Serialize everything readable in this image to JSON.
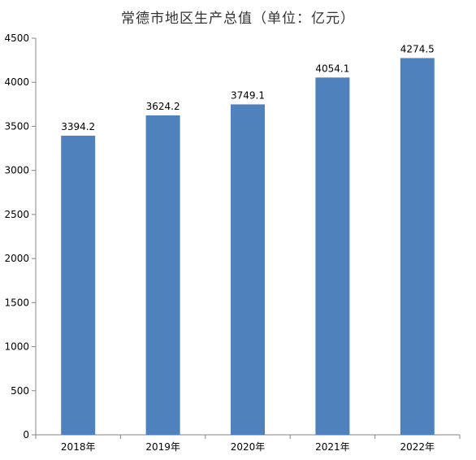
{
  "chart_data": {
    "type": "bar",
    "title": "常德市地区生产总值（单位：亿元）",
    "categories": [
      "2018年",
      "2019年",
      "2020年",
      "2021年",
      "2022年"
    ],
    "values": [
      3394.2,
      3624.2,
      3749.1,
      4054.1,
      4274.5
    ],
    "value_labels": [
      "3394.2",
      "3624.2",
      "3749.1",
      "4054.1",
      "4274.5"
    ],
    "xlabel": "",
    "ylabel": "",
    "ylim": [
      0,
      4500
    ],
    "yticks": [
      0,
      500,
      1000,
      1500,
      2000,
      2500,
      3000,
      3500,
      4000,
      4500
    ],
    "grid": false,
    "legend": "none",
    "bar_color": "#4f81bd"
  }
}
